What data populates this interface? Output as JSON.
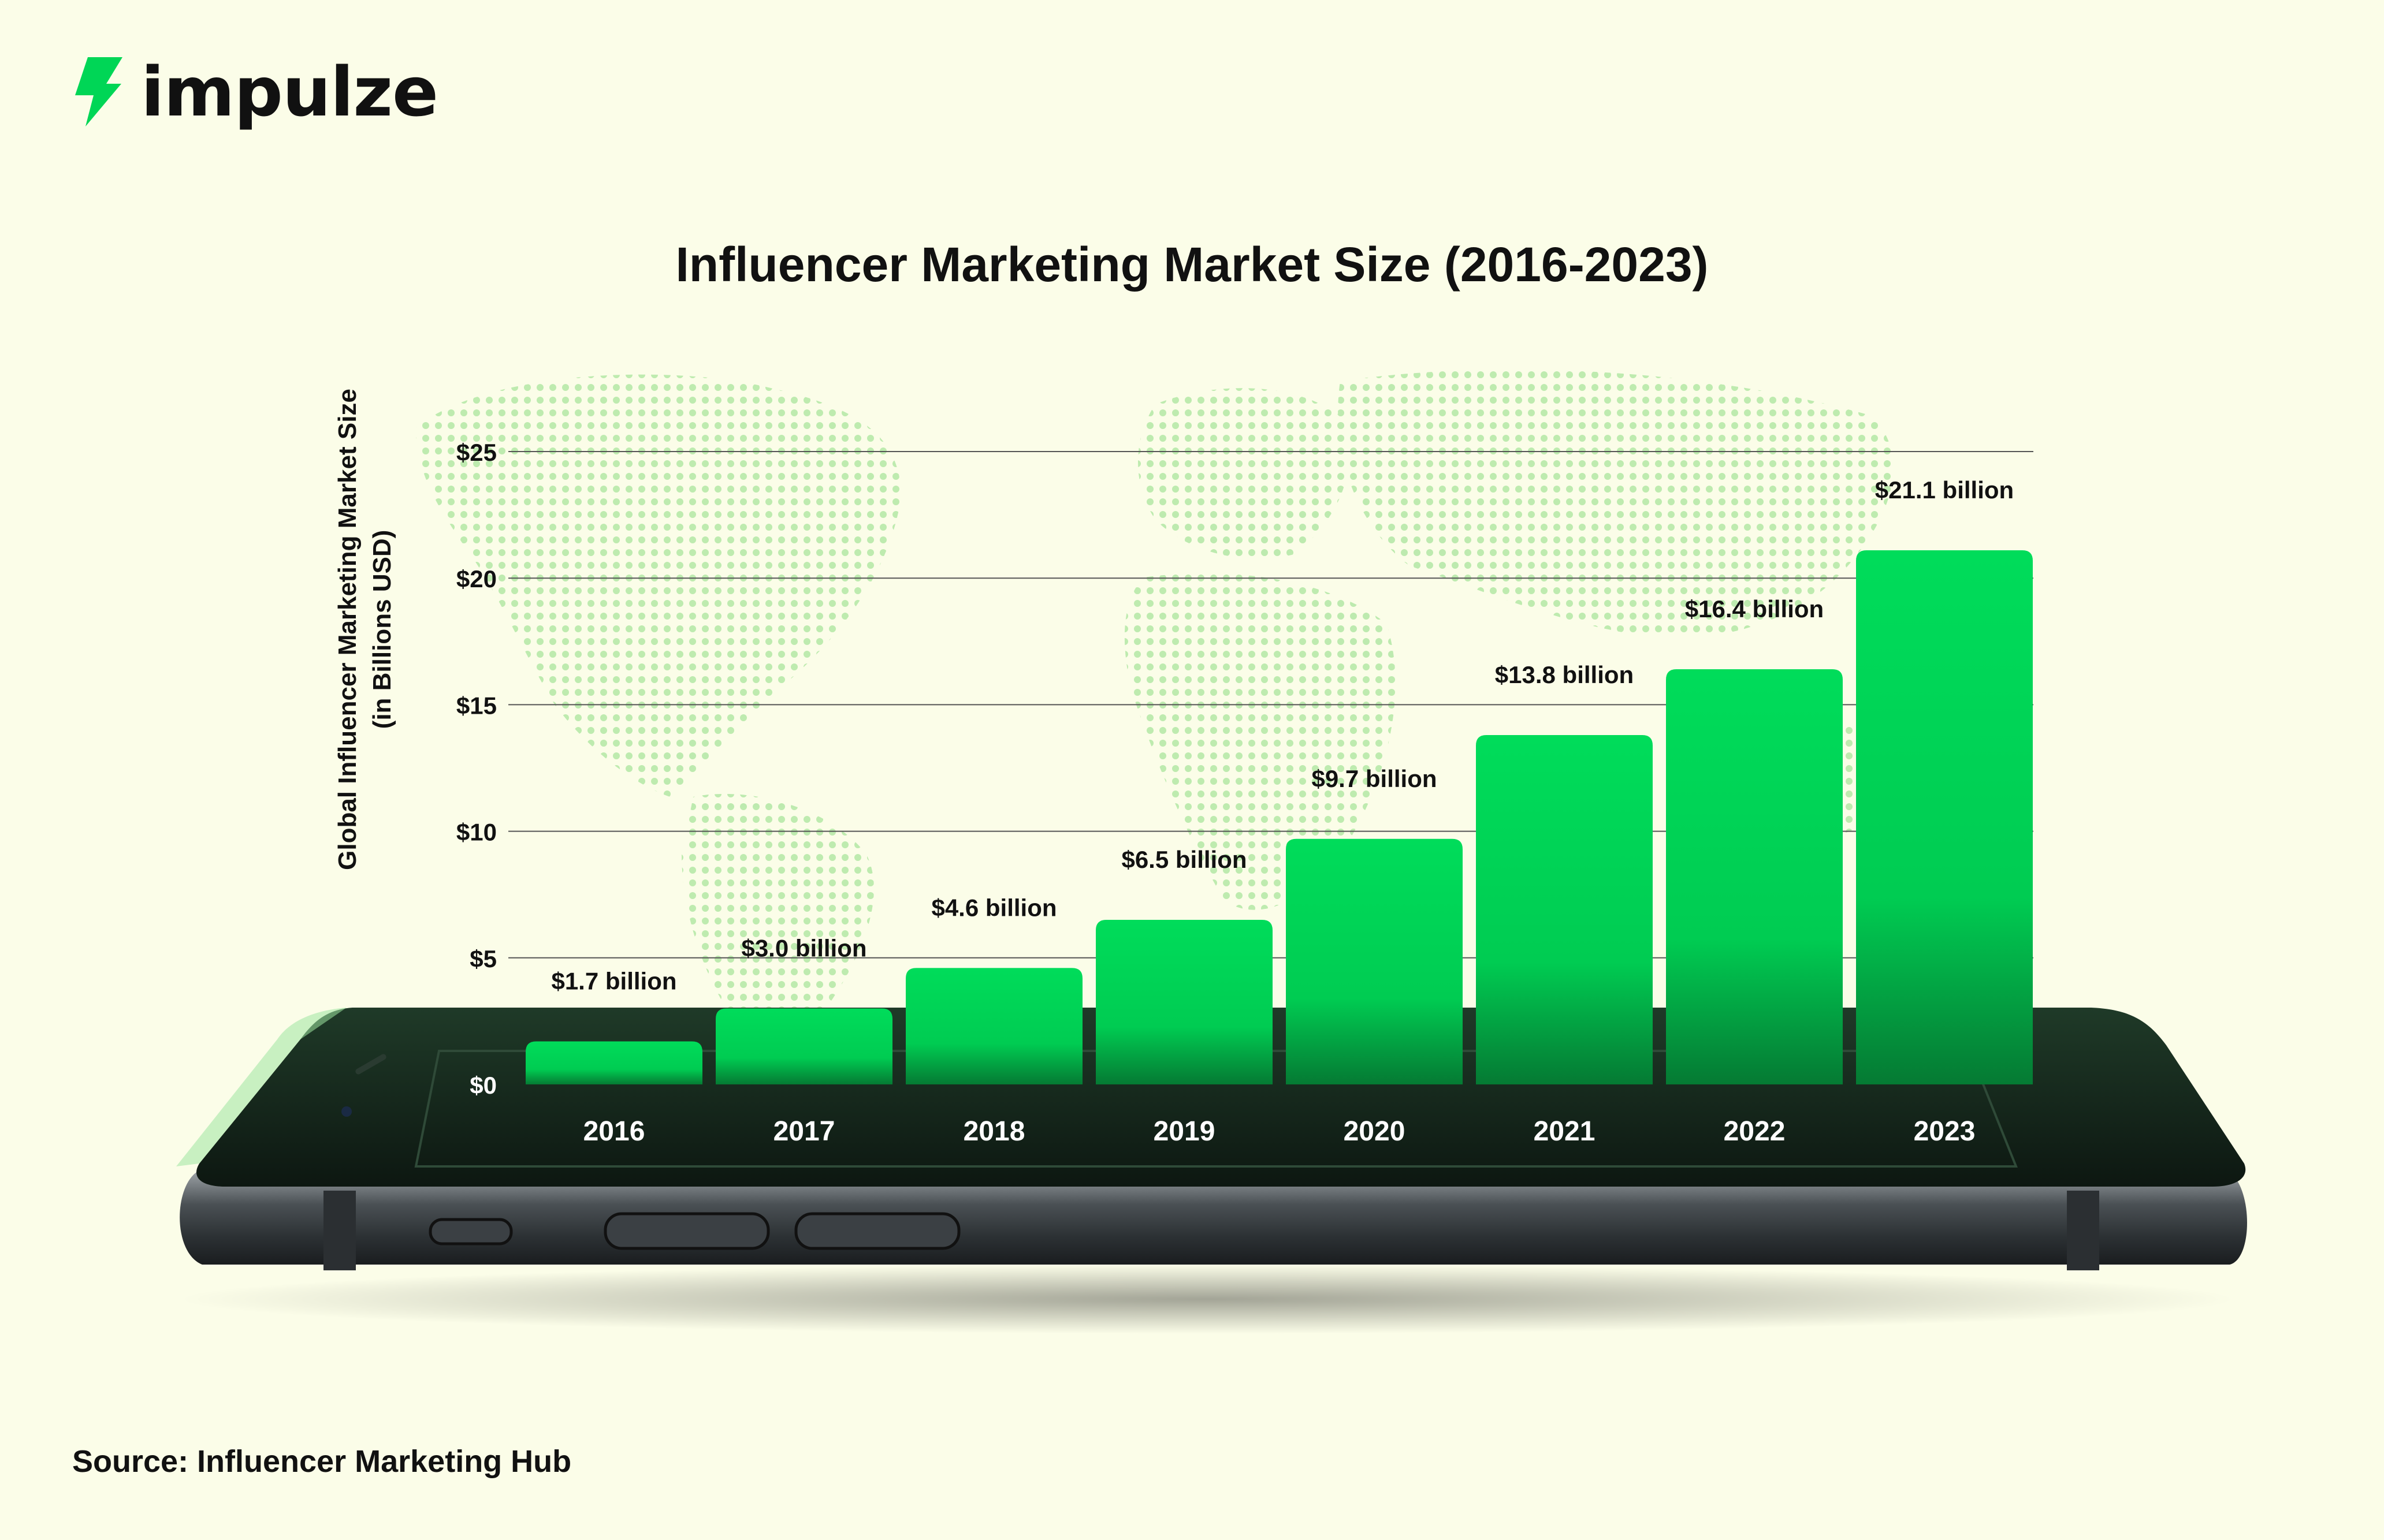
{
  "brand": {
    "name": "impulze",
    "colors": {
      "accent": "#00d656",
      "accent_dark": "#0a9c3e",
      "background": "#fbfde8",
      "phone": "#1b2a20",
      "text": "#111111"
    }
  },
  "source_text": "Source: Influencer Marketing Hub",
  "chart_data": {
    "type": "bar",
    "title": "Influencer Marketing Market Size (2016-2023)",
    "ylabel": "Global Influencer Marketing Market Size",
    "ylabel_sub": "(in Billions USD)",
    "xlabel": "",
    "categories": [
      "2016",
      "2017",
      "2018",
      "2019",
      "2020",
      "2021",
      "2022",
      "2023"
    ],
    "values": [
      1.7,
      3.0,
      4.6,
      6.5,
      9.7,
      13.8,
      16.4,
      21.1
    ],
    "data_labels": [
      "$1.7 billion",
      "$3.0 billion",
      "$4.6 billion",
      "$6.5 billion",
      "$9.7 billion",
      "$13.8 billion",
      "$16.4 billion",
      "$21.1 billion"
    ],
    "yticks": [
      0,
      5,
      10,
      15,
      20,
      25
    ],
    "ytick_labels": [
      "$0",
      "$5",
      "$10",
      "$15",
      "$20",
      "$25"
    ],
    "ylim": [
      0,
      25
    ],
    "grid": true
  }
}
